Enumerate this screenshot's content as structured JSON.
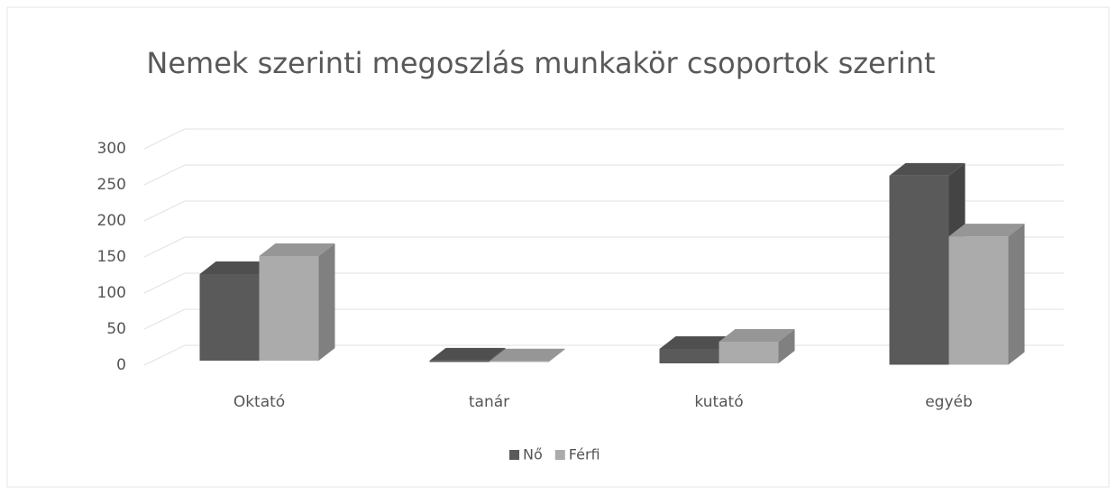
{
  "chart_data": {
    "type": "bar3d",
    "title": "Nemek szerinti megoszlás munkakör csoportok szerint",
    "categories": [
      "Oktató",
      "tanár",
      "kutató",
      "egyéb"
    ],
    "series": [
      {
        "name": "Nő",
        "color": "#5a5a5a",
        "values": [
          120,
          2,
          20,
          262
        ]
      },
      {
        "name": "Férfi",
        "color": "#ababab",
        "values": [
          145,
          1,
          30,
          178
        ]
      }
    ],
    "ylim": [
      0,
      300
    ],
    "yticks": [
      0,
      50,
      100,
      150,
      200,
      250,
      300
    ],
    "grid": true,
    "legend": "bottom"
  }
}
